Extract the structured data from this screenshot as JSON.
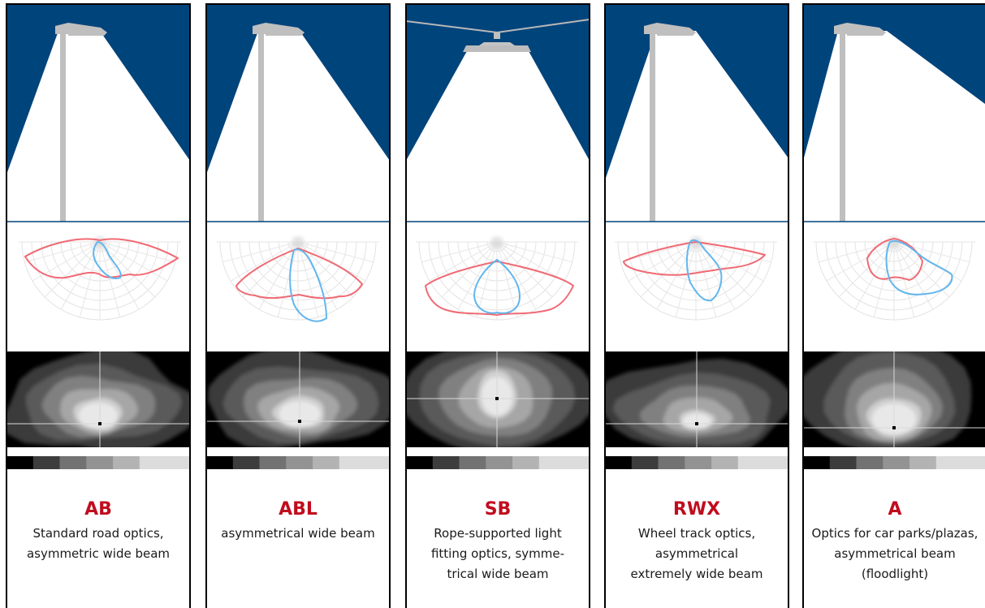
{
  "colors": {
    "sky": "#00447c",
    "pole": "#bfbfbf",
    "frame": "#000000",
    "code": "#c00d1e",
    "curve_red": "#f06a74",
    "curve_blue": "#62b6ee",
    "scale": [
      "#000000",
      "#3d3d3d",
      "#727272",
      "#939393",
      "#b3b3b3",
      "#dcdcdc"
    ]
  },
  "panels": [
    {
      "code": "AB",
      "lines": [
        "Standard road optics,",
        "asymmetric wide beam"
      ],
      "mount": "pole",
      "icons": [
        "street-lamp-icon",
        "polar-intensity-curve-icon",
        "isolux-contour-map-icon"
      ]
    },
    {
      "code": "ABL",
      "lines": [
        "asymmetrical wide beam"
      ],
      "mount": "pole",
      "icons": [
        "street-lamp-icon",
        "polar-intensity-curve-icon",
        "isolux-contour-map-icon"
      ]
    },
    {
      "code": "SB",
      "lines": [
        "Rope-supported light",
        "fitting optics, symme-",
        "trical wide beam"
      ],
      "mount": "rope",
      "icons": [
        "catenary-lamp-icon",
        "polar-intensity-curve-icon",
        "isolux-contour-map-icon"
      ]
    },
    {
      "code": "RWX",
      "lines": [
        "Wheel track optics,",
        "asymmetrical",
        "extremely wide beam"
      ],
      "mount": "pole",
      "icons": [
        "street-lamp-icon",
        "polar-intensity-curve-icon",
        "isolux-contour-map-icon"
      ]
    },
    {
      "code": "A",
      "lines": [
        "Optics for car parks/plazas,",
        "asymmetrical beam",
        "(floodlight)"
      ],
      "mount": "pole",
      "icons": [
        "street-lamp-icon",
        "polar-intensity-curve-icon",
        "isolux-contour-map-icon"
      ]
    }
  ]
}
